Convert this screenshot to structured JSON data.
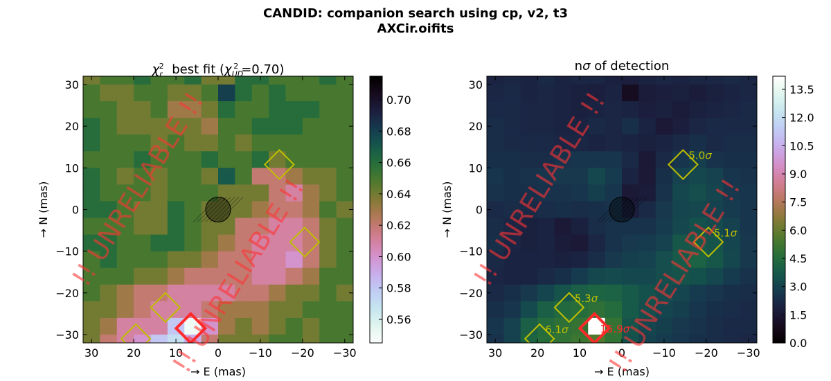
{
  "figure": {
    "title_line1": "CANDID: companion search using cp, v2, t3",
    "title_line2": "AXCir.oifits",
    "watermark": "!! UNRELIABLE !!",
    "watermark_color": "#ff3333"
  },
  "chart_data": [
    {
      "type": "heatmap",
      "title_prefix": "χ",
      "title_sub": "r",
      "title_sup": "2",
      "title_mid": "  best fit (",
      "title_chi": "χ",
      "title_chi_sub": "UD",
      "title_chi_sup": "2",
      "title_suffix": "=0.70)",
      "xlabel": "→ E (mas)",
      "ylabel": "→ N (mas)",
      "xlim": [
        32,
        -32
      ],
      "ylim": [
        -32,
        32
      ],
      "x_ticks": [
        30,
        20,
        10,
        0,
        -10,
        -20,
        -30
      ],
      "y_ticks": [
        30,
        20,
        10,
        0,
        -10,
        -20,
        -30
      ],
      "tick_labels_x": [
        "30",
        "20",
        "10",
        "0",
        "−10",
        "−20",
        "−30"
      ],
      "tick_labels_y": [
        "30",
        "20",
        "10",
        "0",
        "−10",
        "−20",
        "−30"
      ],
      "colorbar": {
        "min": 0.545,
        "max": 0.715,
        "ticks": [
          0.56,
          0.58,
          0.6,
          0.62,
          0.64,
          0.66,
          0.68,
          0.7
        ],
        "tick_labels": [
          "0.56",
          "0.58",
          "0.60",
          "0.62",
          "0.64",
          "0.66",
          "0.68",
          "0.70"
        ],
        "colormap": "cubehelix_r"
      },
      "grid_step": 4,
      "grid": [
        [
          0.64,
          0.65,
          0.65,
          0.66,
          0.65,
          0.65,
          0.66,
          0.64,
          0.64,
          0.66,
          0.66,
          0.65,
          0.65,
          0.65,
          0.66,
          0.65
        ],
        [
          0.65,
          0.64,
          0.64,
          0.65,
          0.65,
          0.64,
          0.64,
          0.65,
          0.68,
          0.66,
          0.65,
          0.66,
          0.65,
          0.65,
          0.65,
          0.65
        ],
        [
          0.65,
          0.65,
          0.64,
          0.64,
          0.65,
          0.63,
          0.63,
          0.64,
          0.66,
          0.65,
          0.65,
          0.66,
          0.66,
          0.66,
          0.65,
          0.65
        ],
        [
          0.66,
          0.65,
          0.64,
          0.64,
          0.64,
          0.64,
          0.64,
          0.63,
          0.65,
          0.65,
          0.66,
          0.66,
          0.66,
          0.65,
          0.65,
          0.65
        ],
        [
          0.66,
          0.65,
          0.65,
          0.65,
          0.64,
          0.65,
          0.64,
          0.64,
          0.65,
          0.64,
          0.65,
          0.65,
          0.65,
          0.65,
          0.65,
          0.65
        ],
        [
          0.65,
          0.65,
          0.65,
          0.66,
          0.65,
          0.65,
          0.65,
          0.66,
          0.65,
          0.65,
          0.66,
          0.64,
          0.65,
          0.65,
          0.65,
          0.65
        ],
        [
          0.66,
          0.65,
          0.64,
          0.65,
          0.64,
          0.65,
          0.65,
          0.64,
          0.67,
          0.65,
          0.62,
          0.62,
          0.63,
          0.64,
          0.64,
          0.65
        ],
        [
          0.66,
          0.65,
          0.65,
          0.65,
          0.64,
          0.65,
          0.65,
          0.65,
          0.64,
          0.64,
          0.64,
          0.62,
          0.61,
          0.63,
          0.64,
          0.65
        ],
        [
          0.66,
          0.66,
          0.65,
          0.64,
          0.64,
          0.66,
          0.65,
          0.64,
          0.64,
          0.64,
          0.63,
          0.62,
          0.62,
          0.63,
          0.65,
          0.64
        ],
        [
          0.65,
          0.65,
          0.65,
          0.64,
          0.64,
          0.66,
          0.65,
          0.64,
          0.64,
          0.62,
          0.62,
          0.61,
          0.61,
          0.62,
          0.64,
          0.65
        ],
        [
          0.66,
          0.66,
          0.65,
          0.65,
          0.66,
          0.66,
          0.65,
          0.64,
          0.63,
          0.62,
          0.61,
          0.61,
          0.61,
          0.62,
          0.64,
          0.65
        ],
        [
          0.65,
          0.66,
          0.65,
          0.65,
          0.65,
          0.64,
          0.64,
          0.63,
          0.62,
          0.62,
          0.61,
          0.61,
          0.6,
          0.62,
          0.64,
          0.65
        ],
        [
          0.65,
          0.65,
          0.65,
          0.64,
          0.64,
          0.63,
          0.62,
          0.62,
          0.62,
          0.62,
          0.61,
          0.61,
          0.62,
          0.63,
          0.65,
          0.65
        ],
        [
          0.65,
          0.64,
          0.63,
          0.62,
          0.62,
          0.61,
          0.61,
          0.61,
          0.61,
          0.62,
          0.62,
          0.63,
          0.64,
          0.64,
          0.65,
          0.64
        ],
        [
          0.64,
          0.64,
          0.63,
          0.62,
          0.61,
          0.61,
          0.61,
          0.62,
          0.63,
          0.63,
          0.63,
          0.64,
          0.64,
          0.65,
          0.65,
          0.65
        ],
        [
          0.64,
          0.63,
          0.61,
          0.61,
          0.61,
          0.58,
          0.55,
          0.6,
          0.63,
          0.64,
          0.63,
          0.64,
          0.65,
          0.64,
          0.65,
          0.65
        ],
        [
          0.64,
          0.62,
          0.61,
          0.6,
          0.58,
          0.57,
          0.59,
          0.62,
          0.64,
          0.64,
          0.64,
          0.65,
          0.65,
          0.64,
          0.65,
          0.65
        ]
      ]
    },
    {
      "type": "heatmap",
      "title_prefix": "n",
      "title_sigma": "σ",
      "title_suffix": " of detection",
      "xlabel": "→ E (mas)",
      "ylabel": "→ N (mas)",
      "xlim": [
        32,
        -32
      ],
      "ylim": [
        -32,
        32
      ],
      "x_ticks": [
        30,
        20,
        10,
        0,
        -10,
        -20,
        -30
      ],
      "y_ticks": [
        30,
        20,
        10,
        0,
        -10,
        -20,
        -30
      ],
      "tick_labels_x": [
        "30",
        "20",
        "10",
        "0",
        "−10",
        "−20",
        "−30"
      ],
      "tick_labels_y": [
        "30",
        "20",
        "10",
        "0",
        "−10",
        "−20",
        "−30"
      ],
      "colorbar": {
        "min": 0.0,
        "max": 14.2,
        "ticks": [
          0.0,
          1.5,
          3.0,
          4.5,
          6.0,
          7.5,
          9.0,
          10.5,
          12.0,
          13.5
        ],
        "tick_labels": [
          "0.0",
          "1.5",
          "3.0",
          "4.5",
          "6.0",
          "7.5",
          "9.0",
          "10.5",
          "12.0",
          "13.5"
        ],
        "colormap": "cubehelix"
      },
      "grid_step": 4,
      "grid": [
        [
          2.0,
          2.1,
          2.0,
          2.2,
          2.0,
          2.1,
          2.1,
          1.9,
          1.8,
          2.0,
          2.1,
          2.0,
          2.1,
          2.1,
          2.2,
          2.1
        ],
        [
          2.1,
          2.2,
          2.0,
          2.1,
          2.0,
          1.9,
          1.8,
          2.0,
          1.0,
          1.7,
          1.8,
          1.9,
          1.7,
          1.9,
          2.0,
          2.1
        ],
        [
          2.2,
          2.2,
          2.1,
          2.1,
          2.0,
          1.9,
          2.0,
          2.1,
          2.0,
          1.8,
          1.9,
          1.7,
          1.9,
          2.0,
          2.1,
          2.2
        ],
        [
          2.3,
          2.2,
          2.1,
          2.1,
          2.0,
          2.0,
          2.2,
          2.1,
          2.4,
          2.0,
          1.6,
          1.8,
          2.1,
          2.2,
          2.2,
          2.2
        ],
        [
          2.3,
          2.2,
          2.2,
          2.2,
          2.1,
          2.1,
          2.0,
          2.1,
          2.0,
          1.9,
          2.0,
          2.2,
          2.4,
          2.2,
          2.3,
          2.3
        ],
        [
          2.4,
          2.4,
          2.3,
          2.3,
          2.5,
          2.6,
          2.6,
          2.6,
          2.2,
          1.6,
          2.2,
          2.6,
          2.9,
          2.5,
          2.4,
          2.4
        ],
        [
          2.6,
          2.4,
          2.5,
          2.6,
          2.7,
          2.7,
          3.2,
          2.8,
          2.0,
          1.6,
          2.4,
          3.0,
          3.2,
          3.0,
          2.6,
          2.5
        ],
        [
          2.5,
          2.4,
          2.4,
          2.5,
          2.5,
          2.6,
          2.9,
          2.6,
          1.6,
          1.7,
          2.5,
          3.2,
          3.4,
          3.1,
          2.7,
          2.6
        ],
        [
          2.2,
          2.3,
          2.2,
          2.3,
          2.4,
          2.3,
          2.4,
          2.5,
          1.8,
          2.2,
          2.7,
          3.1,
          3.2,
          3.0,
          2.8,
          2.6
        ],
        [
          2.3,
          2.1,
          1.9,
          2.0,
          1.6,
          1.9,
          2.3,
          2.5,
          2.5,
          2.5,
          2.8,
          3.2,
          3.5,
          3.3,
          3.0,
          2.6
        ],
        [
          2.4,
          2.1,
          1.9,
          2.0,
          1.7,
          1.6,
          2.1,
          2.5,
          2.7,
          2.8,
          3.0,
          3.7,
          3.8,
          3.6,
          3.1,
          2.7
        ],
        [
          2.2,
          2.0,
          2.0,
          2.0,
          1.9,
          2.0,
          2.3,
          2.7,
          2.9,
          3.0,
          3.4,
          3.8,
          4.1,
          3.7,
          3.2,
          2.7
        ],
        [
          2.1,
          2.0,
          2.0,
          2.2,
          2.4,
          2.8,
          3.2,
          3.3,
          3.2,
          3.2,
          3.4,
          3.6,
          3.5,
          3.2,
          2.8,
          2.5
        ],
        [
          2.2,
          2.4,
          2.7,
          3.1,
          3.6,
          4.0,
          4.2,
          4.1,
          3.8,
          3.5,
          3.3,
          3.1,
          2.8,
          2.6,
          2.4,
          2.3
        ],
        [
          2.4,
          2.6,
          3.3,
          4.0,
          4.4,
          4.6,
          4.8,
          4.5,
          3.8,
          3.4,
          3.1,
          2.9,
          2.6,
          2.4,
          2.3,
          2.2
        ],
        [
          2.6,
          3.0,
          4.0,
          4.5,
          4.8,
          5.0,
          14.2,
          5.0,
          3.6,
          3.1,
          2.9,
          2.7,
          2.5,
          2.3,
          2.2,
          2.2
        ],
        [
          2.5,
          3.0,
          4.2,
          4.6,
          4.9,
          5.2,
          5.6,
          4.9,
          3.5,
          3.0,
          2.8,
          2.6,
          2.4,
          2.3,
          2.2,
          2.1
        ]
      ],
      "detections": [
        {
          "x": -14.5,
          "y": 10.8,
          "label": "5.0",
          "color": "#bfbf00"
        },
        {
          "x": -20.5,
          "y": -7.8,
          "label": "5.1",
          "color": "#bfbf00"
        },
        {
          "x": 12.5,
          "y": -23.5,
          "label": "5.3",
          "color": "#bfbf00"
        },
        {
          "x": 19.5,
          "y": -31.0,
          "label": "6.1",
          "color": "#bfbf00"
        },
        {
          "x": 6.5,
          "y": -28.5,
          "label": "15.9",
          "color": "#ff2a2a"
        }
      ]
    }
  ],
  "markers": {
    "star_x": 0,
    "star_y": 0,
    "yellow": "#bfbf00",
    "red": "#ff2a2a"
  }
}
